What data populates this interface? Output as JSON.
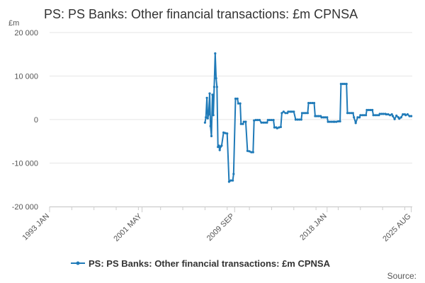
{
  "chart_data": {
    "type": "line",
    "title": "PS: PS Banks: Other financial transactions: £m CPNSA",
    "unit_label": "£m",
    "source_label": "Source:",
    "ylim": [
      -20000,
      20000
    ],
    "y_ticks": [
      {
        "value": 20000,
        "label": "20 000"
      },
      {
        "value": 10000,
        "label": "10 000"
      },
      {
        "value": 0,
        "label": "0"
      },
      {
        "value": -10000,
        "label": "-10 000"
      },
      {
        "value": -20000,
        "label": "-20 000"
      }
    ],
    "xlim": [
      1993.0,
      2025.67
    ],
    "x_ticks": [
      {
        "value": 1993.0,
        "label": "1993 JAN"
      },
      {
        "value": 2001.33,
        "label": "2001 MAY"
      },
      {
        "value": 2009.67,
        "label": "2009 SEP"
      },
      {
        "value": 2018.0,
        "label": "2018 JAN"
      },
      {
        "value": 2025.58,
        "label": "2025 AUG"
      }
    ],
    "grid": true,
    "legend_position": "bottom",
    "color": "#1f7ab8",
    "series": [
      {
        "name": "PS: PS Banks: Other financial transactions: £m CPNSA",
        "points": [
          [
            2007.0,
            -700
          ],
          [
            2007.08,
            500
          ],
          [
            2007.17,
            5000
          ],
          [
            2007.25,
            300
          ],
          [
            2007.33,
            1200
          ],
          [
            2007.42,
            6000
          ],
          [
            2007.5,
            -1500
          ],
          [
            2007.58,
            -3800
          ],
          [
            2007.67,
            5700
          ],
          [
            2007.75,
            1000
          ],
          [
            2007.83,
            7500
          ],
          [
            2007.92,
            15200
          ],
          [
            2008.0,
            9500
          ],
          [
            2008.08,
            7500
          ],
          [
            2008.17,
            -6300
          ],
          [
            2008.25,
            -6000
          ],
          [
            2008.33,
            -7000
          ],
          [
            2008.42,
            -6200
          ],
          [
            2008.5,
            -6000
          ],
          [
            2008.67,
            -3000
          ],
          [
            2008.83,
            -3100
          ],
          [
            2009.0,
            -3200
          ],
          [
            2009.17,
            -14300
          ],
          [
            2009.33,
            -14000
          ],
          [
            2009.5,
            -14000
          ],
          [
            2009.58,
            -12500
          ],
          [
            2009.75,
            4800
          ],
          [
            2009.92,
            4800
          ],
          [
            2010.0,
            3700
          ],
          [
            2010.17,
            3700
          ],
          [
            2010.25,
            -1000
          ],
          [
            2010.42,
            -1000
          ],
          [
            2010.5,
            -500
          ],
          [
            2010.67,
            -500
          ],
          [
            2010.83,
            -7200
          ],
          [
            2011.0,
            -7300
          ],
          [
            2011.17,
            -7500
          ],
          [
            2011.33,
            -7500
          ],
          [
            2011.42,
            -200
          ],
          [
            2011.58,
            -100
          ],
          [
            2011.75,
            -100
          ],
          [
            2011.92,
            -100
          ],
          [
            2012.08,
            -700
          ],
          [
            2012.25,
            -700
          ],
          [
            2012.42,
            -700
          ],
          [
            2012.58,
            -700
          ],
          [
            2012.67,
            -100
          ],
          [
            2012.83,
            -100
          ],
          [
            2013.0,
            -100
          ],
          [
            2013.17,
            -100
          ],
          [
            2013.25,
            -1800
          ],
          [
            2013.42,
            -1800
          ],
          [
            2013.5,
            -2000
          ],
          [
            2013.67,
            -1800
          ],
          [
            2013.83,
            -1700
          ],
          [
            2013.92,
            1500
          ],
          [
            2014.08,
            1800
          ],
          [
            2014.25,
            1500
          ],
          [
            2014.42,
            1500
          ],
          [
            2014.5,
            1800
          ],
          [
            2014.67,
            1800
          ],
          [
            2014.83,
            1800
          ],
          [
            2015.0,
            1800
          ],
          [
            2015.17,
            0
          ],
          [
            2015.33,
            0
          ],
          [
            2015.5,
            0
          ],
          [
            2015.67,
            0
          ],
          [
            2015.75,
            1500
          ],
          [
            2015.92,
            1500
          ],
          [
            2016.08,
            1500
          ],
          [
            2016.25,
            1500
          ],
          [
            2016.33,
            3800
          ],
          [
            2016.5,
            3800
          ],
          [
            2016.67,
            3800
          ],
          [
            2016.83,
            3800
          ],
          [
            2016.92,
            800
          ],
          [
            2017.08,
            800
          ],
          [
            2017.25,
            800
          ],
          [
            2017.42,
            800
          ],
          [
            2017.5,
            500
          ],
          [
            2017.67,
            500
          ],
          [
            2017.83,
            500
          ],
          [
            2018.0,
            500
          ],
          [
            2018.08,
            -500
          ],
          [
            2018.25,
            -500
          ],
          [
            2018.42,
            -500
          ],
          [
            2018.58,
            -500
          ],
          [
            2018.67,
            -500
          ],
          [
            2018.83,
            -500
          ],
          [
            2019.0,
            -400
          ],
          [
            2019.17,
            -400
          ],
          [
            2019.25,
            8200
          ],
          [
            2019.42,
            8200
          ],
          [
            2019.58,
            8200
          ],
          [
            2019.75,
            8200
          ],
          [
            2019.83,
            1500
          ],
          [
            2020.0,
            1500
          ],
          [
            2020.17,
            1500
          ],
          [
            2020.33,
            1500
          ],
          [
            2020.42,
            500
          ],
          [
            2020.58,
            -800
          ],
          [
            2020.75,
            500
          ],
          [
            2020.92,
            500
          ],
          [
            2021.0,
            1000
          ],
          [
            2021.17,
            1000
          ],
          [
            2021.33,
            1000
          ],
          [
            2021.5,
            1000
          ],
          [
            2021.58,
            2200
          ],
          [
            2021.75,
            2200
          ],
          [
            2021.92,
            2200
          ],
          [
            2022.08,
            2200
          ],
          [
            2022.17,
            1000
          ],
          [
            2022.33,
            1000
          ],
          [
            2022.5,
            1000
          ],
          [
            2022.67,
            1000
          ],
          [
            2022.75,
            1300
          ],
          [
            2022.92,
            1300
          ],
          [
            2023.08,
            1300
          ],
          [
            2023.25,
            1300
          ],
          [
            2023.33,
            1200
          ],
          [
            2023.5,
            1200
          ],
          [
            2023.67,
            1000
          ],
          [
            2023.83,
            1200
          ],
          [
            2023.92,
            800
          ],
          [
            2024.08,
            100
          ],
          [
            2024.25,
            900
          ],
          [
            2024.42,
            500
          ],
          [
            2024.5,
            200
          ],
          [
            2024.67,
            500
          ],
          [
            2024.83,
            1200
          ],
          [
            2025.0,
            1200
          ],
          [
            2025.08,
            1000
          ],
          [
            2025.25,
            1200
          ],
          [
            2025.42,
            800
          ],
          [
            2025.58,
            800
          ]
        ]
      }
    ]
  }
}
